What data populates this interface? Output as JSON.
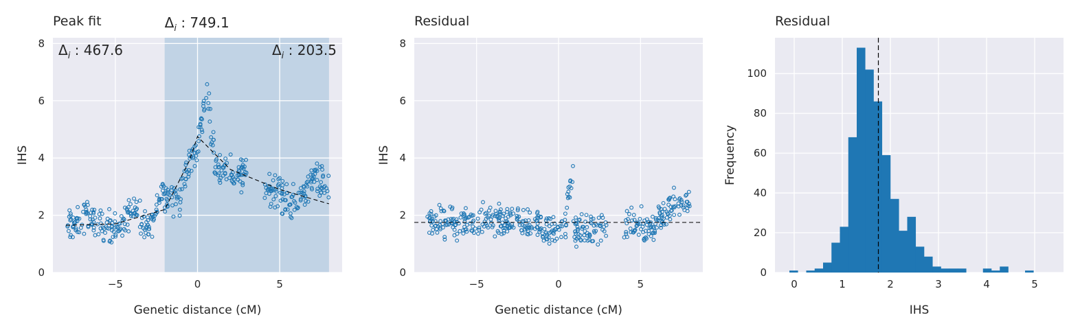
{
  "chart_data": [
    {
      "type": "scatter",
      "title": "Peak fit",
      "xlabel": "Genetic distance (cM)",
      "ylabel": "IHS",
      "xlim": [
        -8.8,
        8.8
      ],
      "ylim": [
        0,
        8.2
      ],
      "xticks": [
        -5,
        0,
        5
      ],
      "yticks": [
        0,
        2,
        4,
        6,
        8
      ],
      "grid": true,
      "point_color": "#1f77b4",
      "shaded_region": {
        "x0": -2.0,
        "x1": 8.0,
        "color": "#1f77b4"
      },
      "annotations": [
        {
          "sym": "Δ",
          "sub": "i",
          "text": " : 467.6",
          "anchor": "top-left-inside"
        },
        {
          "sym": "Δ",
          "sub": "i",
          "text": " : 749.1",
          "anchor": "above-shaded-left"
        },
        {
          "sym": "Δ",
          "sub": "i",
          "text": " : 203.5",
          "anchor": "top-right-inside"
        }
      ],
      "fit_line": {
        "style": "dashed",
        "color": "#000000",
        "x": [
          -8.0,
          -5.0,
          -2.0,
          -0.5,
          0.0,
          2.0,
          5.0,
          8.0
        ],
        "y": [
          1.65,
          1.7,
          2.2,
          3.9,
          4.75,
          3.6,
          2.9,
          2.4
        ]
      },
      "point_clusters": [
        {
          "x0": -8.0,
          "x1": -7.0,
          "y0": 1.6,
          "y1": 1.7
        },
        {
          "x0": -7.0,
          "x1": -6.0,
          "y0": 2.0,
          "y1": 1.7
        },
        {
          "x0": -6.0,
          "x1": -5.0,
          "y0": 1.7,
          "y1": 1.6
        },
        {
          "x0": -5.0,
          "x1": -4.0,
          "y0": 1.6,
          "y1": 2.1
        },
        {
          "x0": -4.0,
          "x1": -3.0,
          "y0": 2.1,
          "y1": 1.6
        },
        {
          "x0": -3.0,
          "x1": -2.0,
          "y0": 1.6,
          "y1": 2.9
        },
        {
          "x0": -2.0,
          "x1": -1.0,
          "y0": 2.7,
          "y1": 2.6
        },
        {
          "x0": -1.0,
          "x1": -0.5,
          "y0": 3.0,
          "y1": 3.6
        },
        {
          "x0": -0.5,
          "x1": 0.0,
          "y0": 3.8,
          "y1": 4.4
        },
        {
          "x0": 0.0,
          "x1": 0.6,
          "y0": 4.6,
          "y1": 6.2
        },
        {
          "x0": 0.6,
          "x1": 1.0,
          "y0": 6.0,
          "y1": 4.5
        },
        {
          "x0": 1.0,
          "x1": 1.5,
          "y0": 3.6,
          "y1": 3.6
        },
        {
          "x0": 1.5,
          "x1": 3.0,
          "y0": 3.7,
          "y1": 3.4
        },
        {
          "x0": 4.0,
          "x1": 5.0,
          "y0": 2.9,
          "y1": 2.9
        },
        {
          "x0": 5.0,
          "x1": 6.0,
          "y0": 2.7,
          "y1": 2.4
        },
        {
          "x0": 6.0,
          "x1": 7.0,
          "y0": 2.4,
          "y1": 3.3
        },
        {
          "x0": 7.0,
          "x1": 8.0,
          "y0": 3.3,
          "y1": 2.9
        }
      ]
    },
    {
      "type": "scatter",
      "title": "Residual",
      "xlabel": "Genetic distance (cM)",
      "ylabel": "IHS",
      "xlim": [
        -8.8,
        8.8
      ],
      "ylim": [
        0,
        8.2
      ],
      "xticks": [
        -5,
        0,
        5
      ],
      "yticks": [
        0,
        2,
        4,
        6,
        8
      ],
      "grid": true,
      "point_color": "#1f77b4",
      "hline": {
        "y": 1.75,
        "style": "dashed",
        "color": "#000000"
      },
      "point_clusters": [
        {
          "x0": -8.0,
          "x1": -6.0,
          "y0": 1.8,
          "y1": 1.7
        },
        {
          "x0": -6.0,
          "x1": -3.0,
          "y0": 1.7,
          "y1": 1.8
        },
        {
          "x0": -3.0,
          "x1": -1.0,
          "y0": 1.6,
          "y1": 1.7
        },
        {
          "x0": -1.0,
          "x1": 0.5,
          "y0": 1.5,
          "y1": 1.5
        },
        {
          "x0": 0.5,
          "x1": 0.9,
          "y0": 2.5,
          "y1": 3.5
        },
        {
          "x0": 0.9,
          "x1": 3.0,
          "y0": 1.4,
          "y1": 1.6
        },
        {
          "x0": 4.0,
          "x1": 6.0,
          "y0": 1.7,
          "y1": 1.5
        },
        {
          "x0": 6.0,
          "x1": 8.0,
          "y0": 1.9,
          "y1": 2.6
        }
      ]
    },
    {
      "type": "histogram",
      "title": "Residual",
      "xlabel": "IHS",
      "ylabel": "Frequency",
      "xlim": [
        -0.4,
        5.6
      ],
      "ylim": [
        0,
        118
      ],
      "xticks": [
        0,
        1,
        2,
        3,
        4,
        5
      ],
      "yticks": [
        0,
        20,
        40,
        60,
        80,
        100
      ],
      "grid": true,
      "bar_color": "#1f77b4",
      "bin_width": 0.175,
      "bin_start": -0.1,
      "counts": [
        1,
        0,
        1,
        2,
        5,
        15,
        23,
        68,
        113,
        102,
        86,
        59,
        37,
        21,
        28,
        13,
        8,
        3,
        2,
        2,
        2,
        0,
        0,
        2,
        1,
        3,
        0,
        0,
        1
      ],
      "vline": {
        "x": 1.75,
        "style": "dashed",
        "color": "#000000"
      }
    }
  ]
}
